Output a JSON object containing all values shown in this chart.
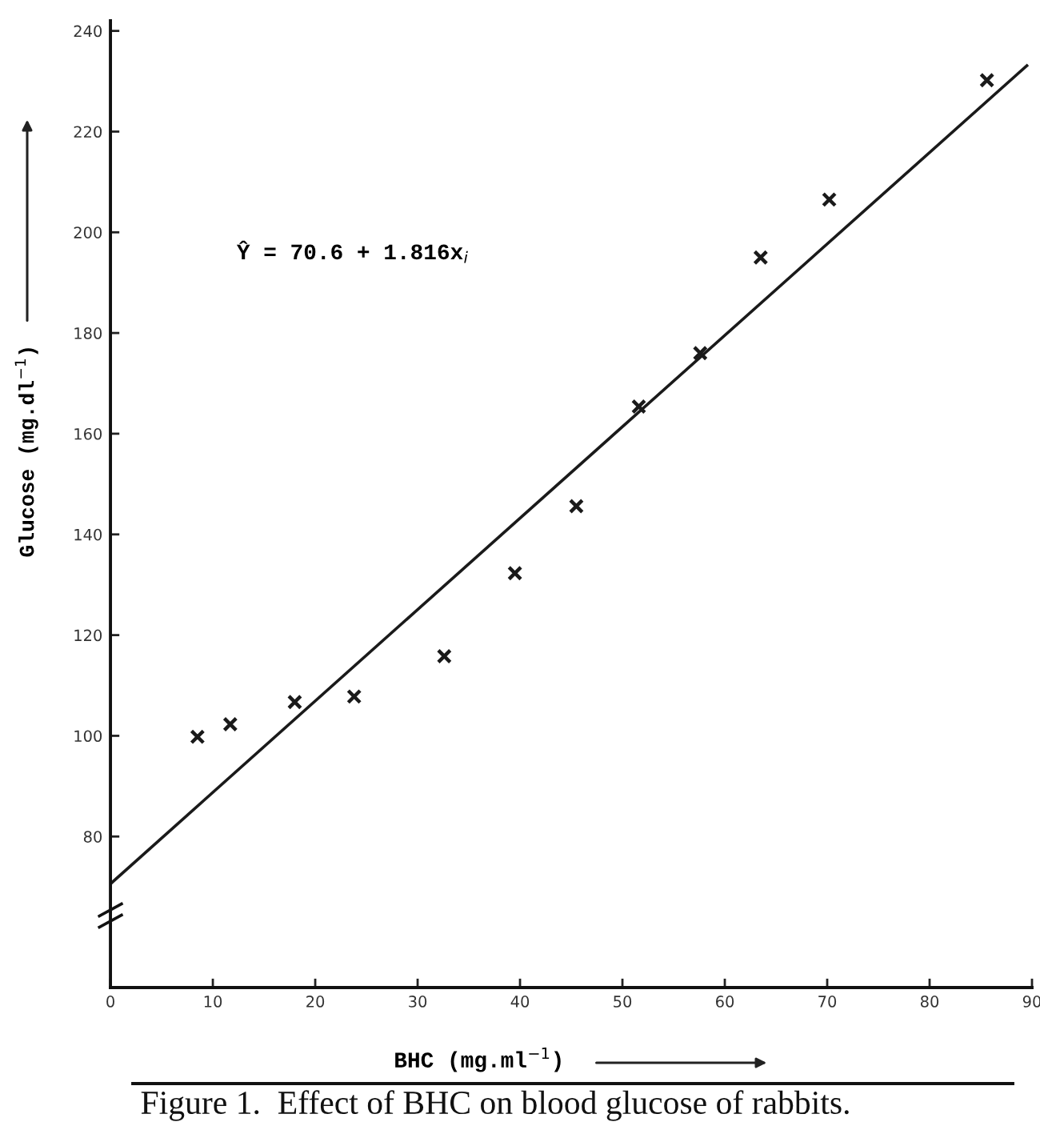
{
  "chart_data": {
    "type": "scatter",
    "title": "Figure 1.  Effect of BHC on blood glucose of rabbits.",
    "xlabel": "BHC (mg.ml$^{−1}$)",
    "ylabel": "Glucose (mg.dl$^{−1}$)",
    "annotations": [
      "Ŷ = 70.6 + 1.816x$_{i}$"
    ],
    "series": [
      {
        "color": "#1a1a1a",
        "marker": "cross",
        "x": [
          8.5,
          11.7,
          18.0,
          23.8,
          32.6,
          39.5,
          45.5,
          51.6,
          57.6,
          63.5,
          70.2,
          85.6
        ],
        "values": [
          99.8,
          102.3,
          106.7,
          107.8,
          115.8,
          132.3,
          145.6,
          165.4,
          176.0,
          195.0,
          206.5,
          230.2
        ]
      },
      {
        "type": "line",
        "color": "#1a1a1a",
        "line_style": "solid",
        "x": [
          0,
          89.5
        ],
        "values": [
          70.6,
          233.1
        ]
      }
    ],
    "grid": false,
    "xlim": [
      0,
      90
    ],
    "xticks": [
      0,
      10,
      20,
      30,
      40,
      50,
      60,
      70,
      80,
      90
    ],
    "ylim": [
      50,
      242
    ],
    "yticks": [
      80,
      100,
      120,
      140,
      160,
      180,
      200,
      220,
      240
    ]
  }
}
